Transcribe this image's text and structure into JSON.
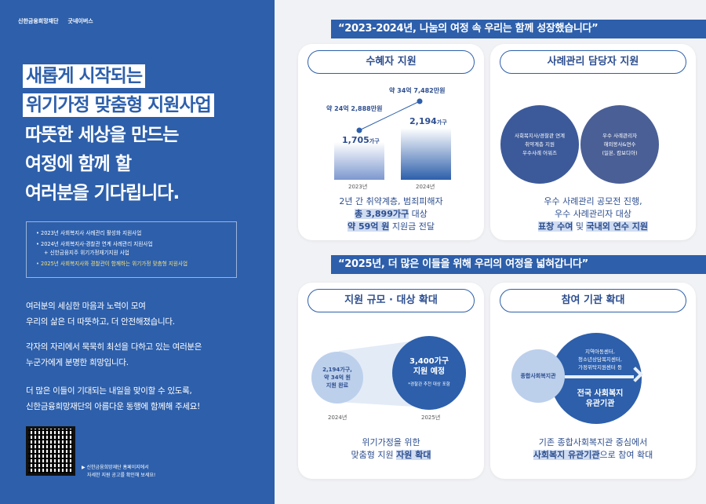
{
  "left": {
    "logo1": "신한금융희망재단",
    "logo2": "굿네이버스",
    "headline_highlight": [
      "새롭게 시작되는",
      "위기가정 맞춤형 지원사업"
    ],
    "headline": [
      "따뜻한 세상을 만드는",
      "여정에 함께 할",
      "여러분을 기다립니다."
    ],
    "bullets": [
      "2023년 사회복지사 사례관리 활성화 지원사업",
      "2024년 사회복지사·경찰관 연계 사례관리 지원사업",
      "+ 신한금융지주 위기가정재기지원 사업",
      "2025년 사회복지사와 경찰관이 함께하는 위기가정 맞춤형 지원사업"
    ],
    "paragraphs": [
      "여러분의 세심한 마음과 노력이 모여",
      "우리의 삶은 더 따뜻하고, 더 안전해졌습니다.",
      "각자의 자리에서 묵묵히 최선을 다하고 있는 여러분은",
      "누군가에게 분명한 희망입니다.",
      "더 많은 이들이 기대되는 내일을 맞이할 수 있도록,",
      "신한금융희망재단의 아름다운 동행에 함께해 주세요!"
    ],
    "qr_note": [
      "▶ 신한금융희망재단 홈페이지에서",
      "자세한 지원 공고를 확인해 보세요!"
    ]
  },
  "section1": {
    "title": "“2023-2024년, 나눔의 여정 속 우리는 함께 성장했습니다”",
    "card1": {
      "title": "수혜자 지원",
      "years": [
        "2023년",
        "2024년"
      ],
      "households": [
        "1,705",
        "2,194"
      ],
      "household_unit": "가구",
      "amounts": [
        "약 24억 2,888만원",
        "약 34억 7,482만원"
      ],
      "caption": [
        "2년 간 취약계층, 범죄피해자",
        "총 3,899가구",
        " 대상",
        "약 59억 원",
        " 지원금 전달"
      ]
    },
    "card2": {
      "title": "사례관리 담당자 지원",
      "photo1": [
        "사회복지사/경찰관 연계",
        "취약계층 지원",
        "우수사례 어워즈"
      ],
      "photo2": [
        "우수 사례관리자",
        "해외봉사&연수",
        "(일본, 캄보디아)"
      ],
      "caption": [
        "우수 사례관리 공모전 진행,",
        "우수 사례관리자 대상",
        "표창 수여",
        " 및 ",
        "국내외 연수 지원"
      ]
    }
  },
  "section2": {
    "title": "“2025년, 더 많은 이들을 위해 우리의 여정을 넓혀갑니다”",
    "card3": {
      "title": "지원 규모 · 대상 확대",
      "small": [
        "2,194가구,",
        "약 34억 원",
        "지원 완료"
      ],
      "big": [
        "3,400가구",
        "지원 예정"
      ],
      "note": "*경찰관 추천 대상 포함",
      "years": [
        "2024년",
        "2025년"
      ],
      "caption": [
        "위기가정을 위한",
        "맞춤형 지원 ",
        "자원 확대"
      ]
    },
    "card4": {
      "title": "참여 기관 확대",
      "small": "종합사회복지관",
      "big_list": [
        "지역아동센터,",
        "청소년상담복지센터,",
        "가정위탁지원센터 등"
      ],
      "big": [
        "전국 사회복지",
        "유관기관"
      ],
      "caption": [
        "기존 종합사회복지관 중심에서",
        "사회복지 유관기관",
        "으로 참여 확대"
      ]
    }
  },
  "colors": {
    "brand": "#2d5fab",
    "highlight": "#cfdcf1",
    "yellow": "#f6e27a"
  }
}
